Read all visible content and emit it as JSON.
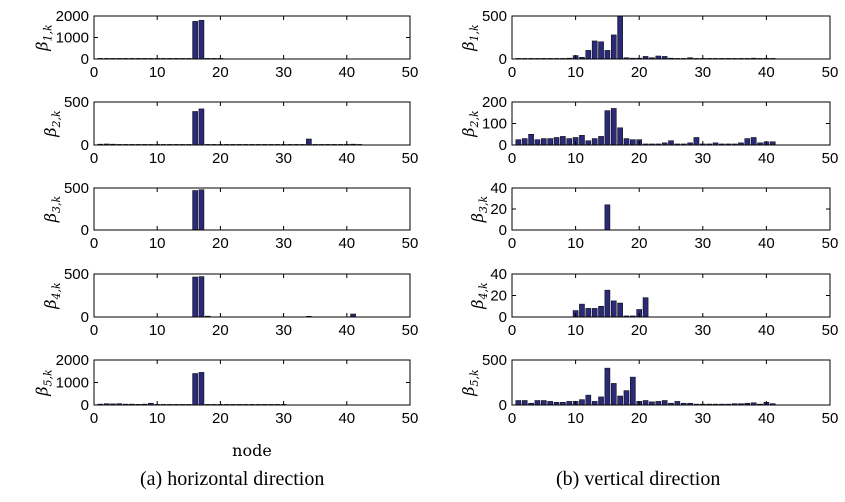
{
  "colors": {
    "bar": "#2a2a78",
    "axis": "#000000"
  },
  "captions": {
    "left": "(a) horizontal direction",
    "right": "(b) vertical direction"
  },
  "xlabel": "node",
  "chart_data": [
    {
      "type": "bar",
      "panel": "a",
      "ylabel_sym": "β",
      "ylabel_sub": "1,k",
      "xlim": [
        0,
        50
      ],
      "ylim": [
        0,
        2000
      ],
      "xticks": [
        0,
        10,
        20,
        30,
        40,
        50
      ],
      "yticks": [
        0,
        1000,
        2000
      ],
      "x": [
        1,
        2,
        3,
        4,
        5,
        6,
        7,
        8,
        9,
        10,
        11,
        12,
        13,
        14,
        15,
        16,
        17,
        18,
        19,
        20
      ],
      "values": [
        5,
        5,
        5,
        5,
        5,
        5,
        5,
        15,
        5,
        5,
        5,
        5,
        5,
        5,
        5,
        1750,
        1800,
        5,
        5,
        5
      ]
    },
    {
      "type": "bar",
      "panel": "a",
      "ylabel_sym": "β",
      "ylabel_sub": "2,k",
      "xlim": [
        0,
        50
      ],
      "ylim": [
        0,
        500
      ],
      "xticks": [
        0,
        10,
        20,
        30,
        40,
        50
      ],
      "yticks": [
        0,
        500
      ],
      "x": [
        1,
        2,
        3,
        4,
        5,
        6,
        7,
        8,
        9,
        10,
        11,
        12,
        13,
        14,
        15,
        16,
        17,
        18,
        19,
        20,
        21,
        22,
        23,
        24,
        25,
        26,
        27,
        28,
        29,
        30,
        31,
        32,
        33,
        34,
        35,
        36,
        37,
        38,
        39,
        40,
        41,
        42
      ],
      "values": [
        10,
        12,
        10,
        6,
        4,
        3,
        3,
        3,
        3,
        3,
        3,
        3,
        3,
        3,
        3,
        390,
        420,
        5,
        5,
        5,
        3,
        3,
        3,
        3,
        3,
        3,
        3,
        3,
        3,
        3,
        3,
        3,
        3,
        70,
        3,
        3,
        3,
        3,
        3,
        3,
        10,
        3
      ]
    },
    {
      "type": "bar",
      "panel": "a",
      "ylabel_sym": "β",
      "ylabel_sub": "3,k",
      "xlim": [
        0,
        50
      ],
      "ylim": [
        0,
        500
      ],
      "xticks": [
        0,
        10,
        20,
        30,
        40,
        50
      ],
      "yticks": [
        0,
        500
      ],
      "x": [
        16,
        17
      ],
      "values": [
        470,
        480
      ]
    },
    {
      "type": "bar",
      "panel": "a",
      "ylabel_sym": "β",
      "ylabel_sub": "4,k",
      "xlim": [
        0,
        50
      ],
      "ylim": [
        0,
        500
      ],
      "xticks": [
        0,
        10,
        20,
        30,
        40,
        50
      ],
      "yticks": [
        0,
        500
      ],
      "x": [
        16,
        17,
        18,
        34,
        41
      ],
      "values": [
        465,
        470,
        10,
        8,
        35
      ]
    },
    {
      "type": "bar",
      "panel": "a",
      "ylabel_sym": "β",
      "ylabel_sub": "5,k",
      "xlim": [
        0,
        50
      ],
      "ylim": [
        0,
        2000
      ],
      "xticks": [
        0,
        10,
        20,
        30,
        40,
        50
      ],
      "yticks": [
        0,
        1000,
        2000
      ],
      "x": [
        1,
        2,
        3,
        4,
        5,
        6,
        7,
        8,
        9,
        10,
        11,
        12,
        13,
        14,
        15,
        16,
        17,
        18,
        19,
        20,
        21,
        22,
        23,
        24,
        25,
        26,
        27,
        28,
        29,
        30
      ],
      "values": [
        40,
        60,
        50,
        60,
        40,
        40,
        30,
        40,
        80,
        20,
        10,
        10,
        10,
        10,
        10,
        1400,
        1450,
        20,
        10,
        10,
        10,
        10,
        10,
        10,
        10,
        10,
        10,
        10,
        10,
        10
      ]
    },
    {
      "type": "bar",
      "panel": "b",
      "ylabel_sym": "β",
      "ylabel_sub": "1,k",
      "xlim": [
        0,
        50
      ],
      "ylim": [
        0,
        500
      ],
      "xticks": [
        0,
        10,
        20,
        30,
        40,
        50
      ],
      "yticks": [
        0,
        500
      ],
      "x": [
        1,
        2,
        3,
        4,
        5,
        6,
        7,
        8,
        9,
        10,
        11,
        12,
        13,
        14,
        15,
        16,
        17,
        18,
        19,
        20,
        21,
        22,
        23,
        24,
        25,
        26,
        27,
        28,
        29,
        30,
        31,
        32,
        33,
        34,
        35,
        36,
        37,
        38,
        39,
        40,
        41
      ],
      "values": [
        3,
        3,
        3,
        3,
        3,
        3,
        3,
        5,
        10,
        40,
        20,
        100,
        210,
        200,
        100,
        280,
        500,
        15,
        10,
        10,
        30,
        15,
        35,
        30,
        10,
        3,
        3,
        15,
        3,
        3,
        3,
        3,
        3,
        3,
        3,
        3,
        3,
        10,
        3,
        8,
        3
      ]
    },
    {
      "type": "bar",
      "panel": "b",
      "ylabel_sym": "β",
      "ylabel_sub": "2,k",
      "xlim": [
        0,
        50
      ],
      "ylim": [
        0,
        200
      ],
      "xticks": [
        0,
        10,
        20,
        30,
        40,
        50
      ],
      "yticks": [
        0,
        100,
        200
      ],
      "x": [
        1,
        2,
        3,
        4,
        5,
        6,
        7,
        8,
        9,
        10,
        11,
        12,
        13,
        14,
        15,
        16,
        17,
        18,
        19,
        20,
        21,
        22,
        23,
        24,
        25,
        26,
        27,
        28,
        29,
        30,
        31,
        32,
        33,
        34,
        35,
        36,
        37,
        38,
        39,
        40,
        41
      ],
      "values": [
        25,
        30,
        50,
        25,
        30,
        30,
        35,
        40,
        30,
        35,
        45,
        20,
        30,
        40,
        160,
        170,
        80,
        30,
        25,
        25,
        5,
        5,
        5,
        10,
        20,
        5,
        5,
        10,
        35,
        5,
        5,
        10,
        5,
        5,
        5,
        10,
        30,
        35,
        10,
        15,
        15
      ]
    },
    {
      "type": "bar",
      "panel": "b",
      "ylabel_sym": "β",
      "ylabel_sub": "3,k",
      "xlim": [
        0,
        50
      ],
      "ylim": [
        0,
        40
      ],
      "xticks": [
        0,
        10,
        20,
        30,
        40,
        50
      ],
      "yticks": [
        0,
        20,
        40
      ],
      "x": [
        15
      ],
      "values": [
        24
      ]
    },
    {
      "type": "bar",
      "panel": "b",
      "ylabel_sym": "β",
      "ylabel_sub": "4,k",
      "xlim": [
        0,
        50
      ],
      "ylim": [
        0,
        40
      ],
      "xticks": [
        0,
        10,
        20,
        30,
        40,
        50
      ],
      "yticks": [
        0,
        20,
        40
      ],
      "x": [
        10,
        11,
        12,
        13,
        14,
        15,
        16,
        17,
        18,
        19,
        20,
        21
      ],
      "values": [
        6,
        12,
        8,
        8,
        10,
        25,
        15,
        13,
        1,
        1,
        7,
        18
      ]
    },
    {
      "type": "bar",
      "panel": "b",
      "ylabel_sym": "β",
      "ylabel_sub": "5,k",
      "xlim": [
        0,
        50
      ],
      "ylim": [
        0,
        500
      ],
      "xticks": [
        0,
        10,
        20,
        30,
        40,
        50
      ],
      "yticks": [
        0,
        500
      ],
      "x": [
        1,
        2,
        3,
        4,
        5,
        6,
        7,
        8,
        9,
        10,
        11,
        12,
        13,
        14,
        15,
        16,
        17,
        18,
        19,
        20,
        21,
        22,
        23,
        24,
        25,
        26,
        27,
        28,
        29,
        30,
        31,
        32,
        33,
        34,
        35,
        36,
        37,
        38,
        39,
        40,
        41
      ],
      "values": [
        50,
        50,
        20,
        50,
        50,
        40,
        30,
        30,
        40,
        40,
        60,
        110,
        40,
        90,
        410,
        240,
        100,
        160,
        310,
        40,
        50,
        35,
        40,
        50,
        20,
        40,
        20,
        20,
        10,
        10,
        10,
        10,
        10,
        10,
        15,
        15,
        20,
        25,
        10,
        30,
        15
      ]
    }
  ]
}
